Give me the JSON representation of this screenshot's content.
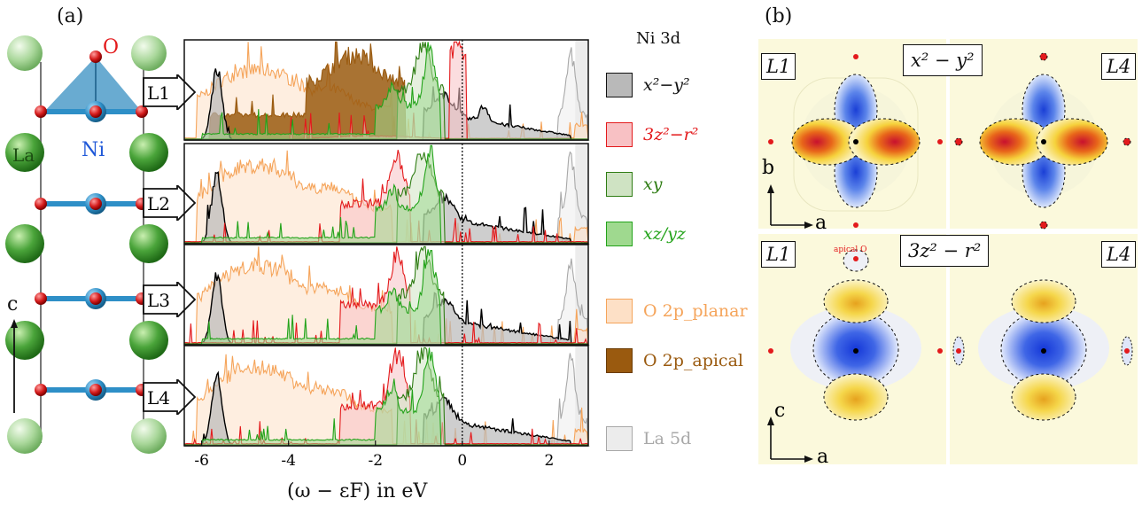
{
  "panels": {
    "a": "(a)",
    "b": "(b)"
  },
  "structure": {
    "atom_O": "O",
    "atom_Ni": "Ni",
    "atom_La": "La",
    "axis_c": "c",
    "layers": [
      "L1",
      "L2",
      "L3",
      "L4"
    ]
  },
  "legend": {
    "title": "Ni 3d",
    "items": [
      {
        "label": "x²−y²",
        "color": "#000000",
        "fill": "#b9b9b9"
      },
      {
        "label": "3z²−r²",
        "color": "#e31a1c",
        "fill": "#f8c1c4"
      },
      {
        "label": "xy",
        "color": "#2f7d14",
        "fill": "#cfe3c3"
      },
      {
        "label": "xz/yz",
        "color": "#23a31a",
        "fill": "#9fd98f"
      },
      {
        "label": "O 2p_planar",
        "color": "#f5a45a",
        "fill": "#fde0c6"
      },
      {
        "label": "O 2p_apical",
        "color": "#9a5a0f",
        "fill": "#9a5a0f"
      },
      {
        "label": "La 5d",
        "color": "#a8a8a8",
        "fill": "#ececec"
      }
    ]
  },
  "chart_data": {
    "type": "area",
    "xlabel": "(ω − εF) in eV",
    "xlim": [
      -6.4,
      2.9
    ],
    "xticks": [
      "-6",
      "-4",
      "-2",
      "0",
      "2"
    ],
    "fermi_level": 0,
    "panels": [
      "L1",
      "L2",
      "L3",
      "L4"
    ],
    "series_names": [
      "x²−y²",
      "3z²−r²",
      "xy",
      "xz/yz",
      "O 2p_planar",
      "O 2p_apical",
      "La 5d"
    ]
  },
  "maps": {
    "labels": {
      "L1": "L1",
      "L4": "L4",
      "orb_top": "x² − y²",
      "orb_bottom": "3z² − r²",
      "apical": "apical O"
    },
    "axes_top": {
      "v": "b",
      "h": "a"
    },
    "axes_bottom": {
      "v": "c",
      "h": "a"
    }
  }
}
